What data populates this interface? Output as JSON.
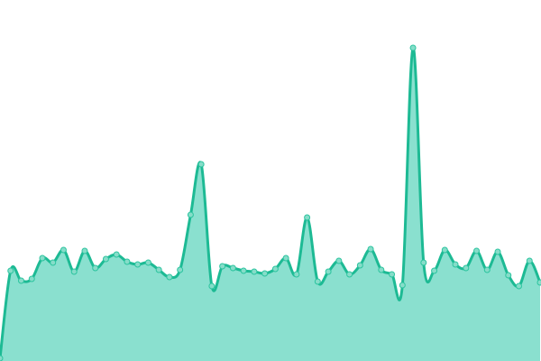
{
  "chart_data": {
    "type": "area",
    "title": "",
    "xlabel": "",
    "ylabel": "",
    "x": [
      0,
      1,
      2,
      3,
      4,
      5,
      6,
      7,
      8,
      9,
      10,
      11,
      12,
      13,
      14,
      15,
      16,
      17,
      18,
      19,
      20,
      21,
      22,
      23,
      24,
      25,
      26,
      27,
      28,
      29,
      30,
      31,
      32,
      33,
      34,
      35,
      36,
      37,
      38,
      39,
      40,
      41,
      42,
      43,
      44,
      45,
      46,
      47,
      48,
      49,
      50,
      51
    ],
    "values": [
      3,
      100,
      89,
      91,
      114,
      109,
      123,
      99,
      122,
      103,
      113,
      118,
      110,
      107,
      109,
      101,
      93,
      101,
      162,
      218,
      83,
      105,
      103,
      100,
      99,
      97,
      102,
      114,
      96,
      159,
      88,
      99,
      111,
      96,
      106,
      124,
      101,
      96,
      84,
      347,
      109,
      100,
      123,
      107,
      103,
      122,
      101,
      121,
      95,
      83,
      111,
      87
    ],
    "ylim": [
      0,
      400
    ],
    "grid": false,
    "axes_visible": false,
    "smooth": true,
    "markers": true,
    "colors": {
      "line": "#1dba94",
      "fill": "#8ae0cf",
      "marker_fill": "#86ddc9",
      "marker_stroke": "#2cc49f"
    }
  }
}
